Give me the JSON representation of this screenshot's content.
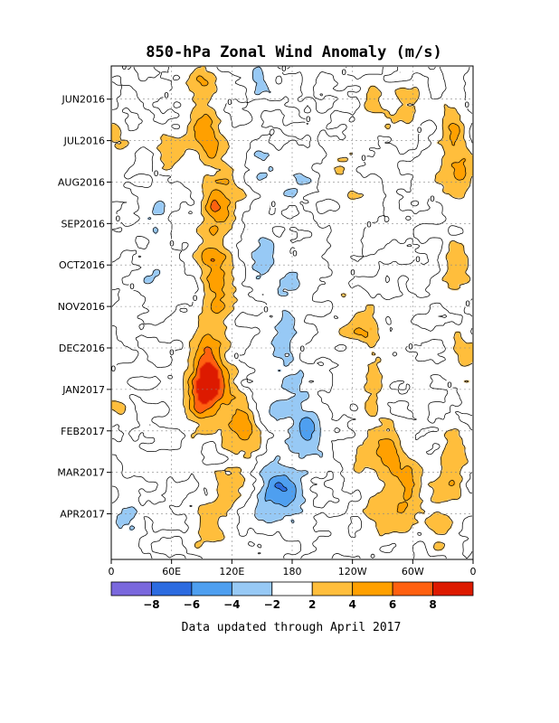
{
  "chart_data": {
    "type": "heatmap",
    "title": "850-hPa Zonal Wind Anomaly (m/s)",
    "footnote": "Data updated through April 2017",
    "x_axis": {
      "ticks": [
        "0",
        "60E",
        "120E",
        "180",
        "120W",
        "60W",
        "0"
      ],
      "tick_lon": [
        0,
        60,
        120,
        180,
        240,
        300,
        360
      ],
      "range": [
        0,
        360
      ]
    },
    "y_axis": {
      "ticks": [
        "JUN2016",
        "JUL2016",
        "AUG2016",
        "SEP2016",
        "OCT2016",
        "NOV2016",
        "DEC2016",
        "JAN2017",
        "FEB2017",
        "MAR2017",
        "APR2017"
      ],
      "tick_month": [
        0,
        1,
        2,
        3,
        4,
        5,
        6,
        7,
        8,
        9,
        10
      ],
      "range_month": [
        -0.8,
        11.1
      ],
      "direction": "time increases downward"
    },
    "colorbar": {
      "labels": [
        "-8",
        "-6",
        "-4",
        "-2",
        "2",
        "4",
        "6",
        "8"
      ],
      "levels": [
        -8,
        -6,
        -4,
        -2,
        2,
        4,
        6,
        8
      ],
      "colors": [
        "#7a68dd",
        "#2c6be0",
        "#4e9ff0",
        "#97c9f5",
        "#ffffff",
        "#ffbe3c",
        "#ffa000",
        "#ff6010",
        "#dd1a00"
      ]
    },
    "contour_label": "0",
    "anomalies": [
      {
        "lon": 90,
        "month": -0.4,
        "value": 3.4
      },
      {
        "lon": 92,
        "month": 0.7,
        "value": 3.8
      },
      {
        "lon": 100,
        "month": 1.2,
        "value": 2.8
      },
      {
        "lon": 60,
        "month": 1.2,
        "value": 2.6
      },
      {
        "lon": 150,
        "month": -0.7,
        "value": -2.6
      },
      {
        "lon": 295,
        "month": 0.2,
        "value": 3.0
      },
      {
        "lon": 230,
        "month": 1.4,
        "value": 2.2
      },
      {
        "lon": 340,
        "month": 0.6,
        "value": 3.6
      },
      {
        "lon": 345,
        "month": 1.8,
        "value": 5.2
      },
      {
        "lon": 345,
        "month": 4.0,
        "value": 3.4
      },
      {
        "lon": 350,
        "month": 6.2,
        "value": 3.0
      },
      {
        "lon": 340,
        "month": 8.5,
        "value": 3.0
      },
      {
        "lon": 325,
        "month": 10.2,
        "value": 2.6
      },
      {
        "lon": 3,
        "month": 1.0,
        "value": 2.4
      },
      {
        "lon": 3,
        "month": 7.2,
        "value": 2.4
      },
      {
        "lon": 120,
        "month": 2.4,
        "value": 2.4
      },
      {
        "lon": 152,
        "month": 1.7,
        "value": -2.4
      },
      {
        "lon": 185,
        "month": 2.0,
        "value": -2.2
      },
      {
        "lon": 45,
        "month": 2.7,
        "value": -2.4
      },
      {
        "lon": 45,
        "month": 4.2,
        "value": -2.2
      },
      {
        "lon": 152,
        "month": 3.7,
        "value": -3.4
      },
      {
        "lon": 180,
        "month": 4.5,
        "value": -2.6
      },
      {
        "lon": 170,
        "month": 5.7,
        "value": -3.0
      },
      {
        "lon": 180,
        "month": 7.0,
        "value": -2.4
      },
      {
        "lon": 162,
        "month": 7.6,
        "value": -2.2
      },
      {
        "lon": 195,
        "month": 8.1,
        "value": -4.6
      },
      {
        "lon": 178,
        "month": 9.5,
        "value": -5.2
      },
      {
        "lon": 160,
        "month": 9.2,
        "value": -2.6
      },
      {
        "lon": 155,
        "month": 10.0,
        "value": -2.2
      },
      {
        "lon": 105,
        "month": 2.6,
        "value": 5.2
      },
      {
        "lon": 100,
        "month": 3.8,
        "value": 4.6
      },
      {
        "lon": 108,
        "month": 4.7,
        "value": 3.6
      },
      {
        "lon": 100,
        "month": 5.5,
        "value": 3.4
      },
      {
        "lon": 95,
        "month": 6.5,
        "value": 7.2
      },
      {
        "lon": 90,
        "month": 7.3,
        "value": 6.6
      },
      {
        "lon": 110,
        "month": 6.9,
        "value": 3.6
      },
      {
        "lon": 120,
        "month": 7.7,
        "value": 2.6
      },
      {
        "lon": 135,
        "month": 8.1,
        "value": 4.6
      },
      {
        "lon": 240,
        "month": 5.3,
        "value": 2.4
      },
      {
        "lon": 265,
        "month": 6.6,
        "value": 2.6
      },
      {
        "lon": 260,
        "month": 7.5,
        "value": 2.2
      },
      {
        "lon": 250,
        "month": 8.7,
        "value": 2.6
      },
      {
        "lon": 277,
        "month": 8.6,
        "value": 5.0
      },
      {
        "lon": 300,
        "month": 9.1,
        "value": 3.6
      },
      {
        "lon": 290,
        "month": 9.8,
        "value": 3.2
      },
      {
        "lon": 265,
        "month": 9.9,
        "value": 2.4
      },
      {
        "lon": 338,
        "month": 9.2,
        "value": 2.4
      },
      {
        "lon": 95,
        "month": 10.3,
        "value": 3.6
      },
      {
        "lon": 115,
        "month": 9.5,
        "value": 2.4
      },
      {
        "lon": 18,
        "month": 10.2,
        "value": -2.4
      },
      {
        "lon": 240,
        "month": 2.8,
        "value": 2.2
      },
      {
        "lon": 260,
        "month": 0.3,
        "value": 2.6
      },
      {
        "lon": 255,
        "month": 5.6,
        "value": 2.2
      }
    ]
  }
}
